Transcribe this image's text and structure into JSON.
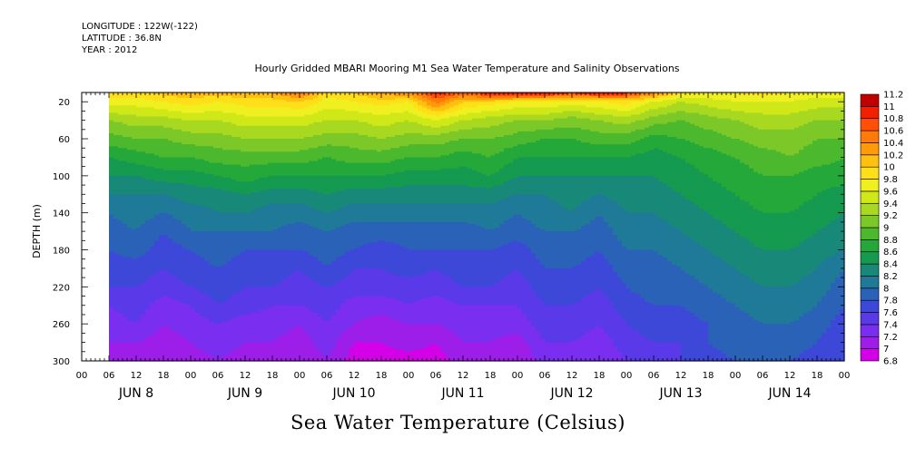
{
  "header": {
    "longitude": "LONGITUDE : 122W(-122)",
    "latitude": "LATITUDE : 36.8N",
    "year": "YEAR : 2012",
    "title": "Hourly Gridded MBARI Mooring M1 Sea Water Temperature and Salinity Observations"
  },
  "footer": {
    "variable": "Sea Water Temperature (Celsius)"
  },
  "chart_data": {
    "type": "heatmap",
    "title": "Hourly Gridded MBARI Mooring M1 Sea Water Temperature and Salinity Observations",
    "xlabel": "",
    "ylabel": "DEPTH (m)",
    "variable": "Sea Water Temperature (Celsius)",
    "x_range_hours": [
      0,
      168
    ],
    "y_range": [
      300,
      10
    ],
    "y_ticks": [
      20,
      60,
      100,
      140,
      180,
      220,
      260,
      300
    ],
    "x_hour_ticks": [
      "00",
      "06",
      "12",
      "18",
      "00",
      "06",
      "12",
      "18",
      "00",
      "06",
      "12",
      "18",
      "00",
      "06",
      "12",
      "18",
      "00",
      "06",
      "12",
      "18",
      "00",
      "06",
      "12",
      "18",
      "00",
      "06",
      "12",
      "18",
      "00"
    ],
    "day_labels": [
      "JUN 8",
      "JUN 9",
      "JUN 10",
      "JUN 11",
      "JUN 12",
      "JUN 13",
      "JUN 14"
    ],
    "colorbar": {
      "levels": [
        6.8,
        7,
        7.2,
        7.4,
        7.6,
        7.8,
        8,
        8.2,
        8.4,
        8.6,
        8.8,
        9,
        9.2,
        9.4,
        9.6,
        9.8,
        10,
        10.2,
        10.4,
        10.6,
        10.8,
        11,
        11.2
      ],
      "labels": [
        "6.8",
        "7",
        "7.2",
        "7.4",
        "7.6",
        "7.8",
        "8",
        "8.2",
        "8.4",
        "8.6",
        "8.8",
        "9",
        "9.2",
        "9.4",
        "9.6",
        "9.8",
        "10",
        "10.2",
        "10.4",
        "10.6",
        "10.8",
        "11",
        "11.2"
      ],
      "colors": [
        "#d400e8",
        "#9d1ee8",
        "#7a2ef0",
        "#5a3ae8",
        "#3d48d8",
        "#2a62b8",
        "#1f7a98",
        "#188878",
        "#159a50",
        "#25a83a",
        "#4cb82e",
        "#7cc828",
        "#a8d820",
        "#d0e818",
        "#f0f020",
        "#ffe018",
        "#ffc010",
        "#ff9a0a",
        "#ff7a08",
        "#ff5005",
        "#f02000",
        "#c00000"
      ]
    },
    "depths": [
      10,
      20,
      40,
      60,
      80,
      100,
      120,
      140,
      160,
      180,
      200,
      220,
      240,
      260,
      280,
      300
    ],
    "times_hours": [
      6,
      12,
      18,
      24,
      30,
      36,
      42,
      48,
      54,
      60,
      66,
      72,
      78,
      84,
      90,
      96,
      102,
      108,
      114,
      120,
      126,
      132,
      138,
      144,
      150,
      156,
      162,
      168
    ],
    "temperature_profiles": [
      [
        9.9,
        9.7,
        9.2,
        8.9,
        8.6,
        8.4,
        8.2,
        8.0,
        7.9,
        7.8,
        7.7,
        7.6,
        7.4,
        7.3,
        7.2,
        7.1
      ],
      [
        9.9,
        9.7,
        9.3,
        9.0,
        8.7,
        8.4,
        8.2,
        8.1,
        8.0,
        7.9,
        7.7,
        7.6,
        7.5,
        7.4,
        7.2,
        7.1
      ],
      [
        10.1,
        9.8,
        9.3,
        9.0,
        8.8,
        8.5,
        8.2,
        8.0,
        7.8,
        7.7,
        7.6,
        7.5,
        7.3,
        7.2,
        7.1,
        7.0
      ],
      [
        10.2,
        9.9,
        9.4,
        9.1,
        8.8,
        8.5,
        8.3,
        8.1,
        8.0,
        7.8,
        7.7,
        7.6,
        7.4,
        7.3,
        7.2,
        7.1
      ],
      [
        10.1,
        9.8,
        9.4,
        9.1,
        8.9,
        8.6,
        8.3,
        8.2,
        8.0,
        7.9,
        7.8,
        7.7,
        7.6,
        7.4,
        7.3,
        7.2
      ],
      [
        10.2,
        9.9,
        9.5,
        9.2,
        8.9,
        8.7,
        8.4,
        8.2,
        8.0,
        7.8,
        7.7,
        7.6,
        7.5,
        7.3,
        7.2,
        7.1
      ],
      [
        10.2,
        9.9,
        9.5,
        9.2,
        8.9,
        8.6,
        8.3,
        8.1,
        8.0,
        7.8,
        7.7,
        7.6,
        7.4,
        7.3,
        7.2,
        7.1
      ],
      [
        10.6,
        10.0,
        9.5,
        9.2,
        8.9,
        8.6,
        8.3,
        8.1,
        7.9,
        7.8,
        7.6,
        7.5,
        7.4,
        7.2,
        7.1,
        7.0
      ],
      [
        9.9,
        9.7,
        9.4,
        9.1,
        8.8,
        8.6,
        8.4,
        8.2,
        8.0,
        7.9,
        7.8,
        7.6,
        7.5,
        7.4,
        7.3,
        7.2
      ],
      [
        10.0,
        9.8,
        9.4,
        9.1,
        8.9,
        8.6,
        8.3,
        8.1,
        7.9,
        7.8,
        7.6,
        7.5,
        7.3,
        7.2,
        7.0,
        6.9
      ],
      [
        10.3,
        9.9,
        9.5,
        9.2,
        8.9,
        8.6,
        8.3,
        8.1,
        7.9,
        7.7,
        7.6,
        7.5,
        7.3,
        7.1,
        7.0,
        6.9
      ],
      [
        10.4,
        9.8,
        9.4,
        9.1,
        8.8,
        8.5,
        8.3,
        8.1,
        7.9,
        7.8,
        7.7,
        7.5,
        7.4,
        7.2,
        7.1,
        6.9
      ],
      [
        10.9,
        10.5,
        9.6,
        9.1,
        8.8,
        8.5,
        8.3,
        8.1,
        7.9,
        7.8,
        7.6,
        7.5,
        7.3,
        7.2,
        7.0,
        6.9
      ],
      [
        10.7,
        10.0,
        9.4,
        9.0,
        8.7,
        8.5,
        8.3,
        8.1,
        7.9,
        7.8,
        7.7,
        7.6,
        7.4,
        7.3,
        7.2,
        7.1
      ],
      [
        11.0,
        9.9,
        9.3,
        9.0,
        8.8,
        8.6,
        8.3,
        8.1,
        8.0,
        7.8,
        7.7,
        7.6,
        7.4,
        7.3,
        7.2,
        7.1
      ],
      [
        11.1,
        9.8,
        9.2,
        8.9,
        8.6,
        8.4,
        8.2,
        8.0,
        7.9,
        7.7,
        7.6,
        7.5,
        7.4,
        7.3,
        7.1,
        7.0
      ],
      [
        11.0,
        9.8,
        9.2,
        8.8,
        8.6,
        8.4,
        8.2,
        8.1,
        8.0,
        7.9,
        7.8,
        7.7,
        7.6,
        7.5,
        7.4,
        7.3
      ],
      [
        10.9,
        9.7,
        9.1,
        8.8,
        8.6,
        8.4,
        8.3,
        8.2,
        8.0,
        7.9,
        7.8,
        7.7,
        7.6,
        7.5,
        7.4,
        7.3
      ],
      [
        11.0,
        9.8,
        9.2,
        8.9,
        8.6,
        8.4,
        8.2,
        8.0,
        7.9,
        7.8,
        7.7,
        7.6,
        7.5,
        7.4,
        7.3,
        7.2
      ],
      [
        10.9,
        9.9,
        9.3,
        8.9,
        8.6,
        8.4,
        8.3,
        8.2,
        8.1,
        8.0,
        7.9,
        7.8,
        7.7,
        7.6,
        7.5,
        7.4
      ],
      [
        10.5,
        9.6,
        9.1,
        8.7,
        8.5,
        8.4,
        8.3,
        8.2,
        8.1,
        8.0,
        7.9,
        7.9,
        7.8,
        7.7,
        7.6,
        7.5
      ],
      [
        9.9,
        9.4,
        9.0,
        8.8,
        8.6,
        8.5,
        8.4,
        8.3,
        8.2,
        8.1,
        8.0,
        7.9,
        7.8,
        7.7,
        7.6,
        7.6
      ],
      [
        9.8,
        9.5,
        9.1,
        8.9,
        8.7,
        8.6,
        8.5,
        8.4,
        8.3,
        8.2,
        8.1,
        8.0,
        7.9,
        7.8,
        7.8,
        7.7
      ],
      [
        9.8,
        9.6,
        9.2,
        9.0,
        8.8,
        8.7,
        8.6,
        8.5,
        8.4,
        8.3,
        8.2,
        8.1,
        8.0,
        7.9,
        7.9,
        7.8
      ],
      [
        9.9,
        9.6,
        9.3,
        9.1,
        8.9,
        8.8,
        8.7,
        8.6,
        8.5,
        8.4,
        8.3,
        8.2,
        8.1,
        8.0,
        8.0,
        7.9
      ],
      [
        9.8,
        9.6,
        9.3,
        9.1,
        9.0,
        8.8,
        8.7,
        8.6,
        8.5,
        8.4,
        8.3,
        8.2,
        8.1,
        8.0,
        7.9,
        7.8
      ],
      [
        9.7,
        9.5,
        9.2,
        9.0,
        8.9,
        8.7,
        8.6,
        8.5,
        8.4,
        8.3,
        8.2,
        8.1,
        8.0,
        7.9,
        7.8,
        7.7
      ],
      [
        9.7,
        9.5,
        9.2,
        9.0,
        8.8,
        8.7,
        8.5,
        8.4,
        8.3,
        8.2,
        8.0,
        7.9,
        7.8,
        7.7,
        7.6,
        7.6
      ]
    ]
  }
}
